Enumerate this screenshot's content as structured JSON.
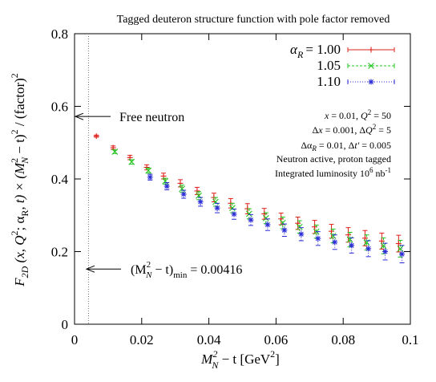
{
  "chart_data": {
    "type": "scatter",
    "title": "Tagged deuteron structure function with pole factor removed",
    "xlabel": {
      "pre": "M",
      "sub": "N",
      "sup": "2",
      "post": " − t   [GeV",
      "unit_sup": "2",
      "end": "]"
    },
    "ylabel": {
      "pre": "F",
      "sub": "2D",
      "mid": " (x, Q",
      "sup1": "2",
      "mid2": "; α",
      "sub2": "R",
      "mid3": ", t) × (M",
      "sub3": "N",
      "sup3": "2",
      "mid4": " − t)",
      "sup4": "2",
      "post": " / (factor)",
      "sup5": "2"
    },
    "xlim": [
      0,
      0.1
    ],
    "ylim": [
      0,
      0.8
    ],
    "xticks": [
      "0",
      "0.02",
      "0.04",
      "0.06",
      "0.08",
      "0.1"
    ],
    "yticks": [
      "0",
      "0.2",
      "0.4",
      "0.6",
      "0.8"
    ],
    "xtick_values": [
      0,
      0.02,
      0.04,
      0.06,
      0.08,
      0.1
    ],
    "ytick_values": [
      0,
      0.2,
      0.4,
      0.6,
      0.8
    ],
    "legend_position": "top-right",
    "legend_prefix": "α",
    "legend_prefix_sub": "R",
    "series": [
      {
        "name": "1.00",
        "legend_text": "= 1.00",
        "color": "#e0201b",
        "marker": "plus",
        "x": [
          0.0065,
          0.0115,
          0.0165,
          0.0215,
          0.0265,
          0.0315,
          0.0365,
          0.0415,
          0.0465,
          0.0515,
          0.0565,
          0.0615,
          0.0665,
          0.0715,
          0.0765,
          0.0815,
          0.0865,
          0.0915,
          0.0965
        ],
        "y": [
          0.518,
          0.486,
          0.459,
          0.432,
          0.408,
          0.388,
          0.367,
          0.349,
          0.333,
          0.318,
          0.304,
          0.29,
          0.278,
          0.268,
          0.256,
          0.246,
          0.237,
          0.229,
          0.222
        ],
        "err": [
          0.003,
          0.005,
          0.006,
          0.007,
          0.008,
          0.01,
          0.01,
          0.012,
          0.013,
          0.014,
          0.015,
          0.016,
          0.017,
          0.018,
          0.019,
          0.02,
          0.021,
          0.022,
          0.023
        ]
      },
      {
        "name": "1.05",
        "legend_text": "1.05",
        "color": "#22c41e",
        "marker": "x",
        "x": [
          0.012,
          0.017,
          0.022,
          0.027,
          0.032,
          0.037,
          0.042,
          0.047,
          0.052,
          0.057,
          0.062,
          0.067,
          0.072,
          0.077,
          0.082,
          0.087,
          0.092,
          0.097
        ],
        "y": [
          0.475,
          0.447,
          0.423,
          0.394,
          0.373,
          0.354,
          0.337,
          0.32,
          0.304,
          0.292,
          0.279,
          0.268,
          0.255,
          0.243,
          0.233,
          0.225,
          0.216,
          0.208
        ],
        "err": [
          0.005,
          0.006,
          0.007,
          0.008,
          0.01,
          0.011,
          0.012,
          0.013,
          0.014,
          0.015,
          0.016,
          0.017,
          0.018,
          0.019,
          0.02,
          0.021,
          0.022,
          0.023
        ]
      },
      {
        "name": "1.10",
        "legend_text": "1.10",
        "color": "#2a2ad8",
        "marker": "star",
        "x": [
          0.0225,
          0.0275,
          0.0325,
          0.0375,
          0.0425,
          0.0475,
          0.0525,
          0.0575,
          0.0625,
          0.0675,
          0.0725,
          0.0775,
          0.0825,
          0.0875,
          0.0925,
          0.0975
        ],
        "y": [
          0.405,
          0.38,
          0.358,
          0.337,
          0.32,
          0.303,
          0.287,
          0.274,
          0.259,
          0.248,
          0.236,
          0.226,
          0.217,
          0.208,
          0.2,
          0.193
        ],
        "err": [
          0.008,
          0.01,
          0.011,
          0.012,
          0.013,
          0.014,
          0.015,
          0.016,
          0.017,
          0.018,
          0.019,
          0.02,
          0.021,
          0.022,
          0.023,
          0.024
        ]
      }
    ],
    "free_neutron": {
      "label": "Free neutron",
      "y": 0.572
    },
    "min_line": {
      "x": 0.00416,
      "label_pre": "(M",
      "label_sub": "N",
      "label_sup": "2",
      "label_mid": " − t)",
      "label_sub2": "min",
      "label_post": " = 0.00416",
      "arrow_y": 0.152
    },
    "annotations": [
      "x = 0.01, Q² = 50",
      "Δx = 0.001, ΔQ² = 5",
      "Δα_R = 0.01,  Δt' = 0.005",
      "Neutron active, proton tagged",
      "Integrated luminosity 10⁶ nb⁻¹"
    ]
  }
}
